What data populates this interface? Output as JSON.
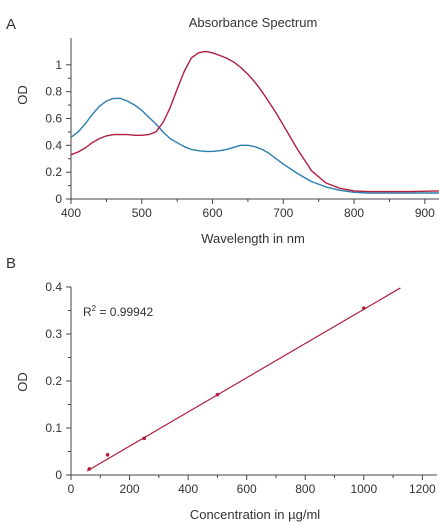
{
  "chart_data": [
    {
      "panel_label": "A",
      "type": "line",
      "title": "Absorbance Spectrum",
      "xlabel": "Wavelength in nm",
      "ylabel": "OD",
      "xlim": [
        400,
        920
      ],
      "ylim": [
        0,
        1.2
      ],
      "xticks": [
        400,
        500,
        600,
        700,
        800,
        900
      ],
      "yticks": [
        0,
        0.2,
        0.4,
        0.6,
        0.8,
        1
      ],
      "grid": false,
      "series": [
        {
          "color": "#2a7fae",
          "x": [
            400,
            410,
            420,
            430,
            440,
            450,
            460,
            470,
            480,
            490,
            500,
            510,
            520,
            530,
            540,
            550,
            560,
            570,
            580,
            590,
            600,
            610,
            620,
            630,
            640,
            650,
            660,
            670,
            680,
            690,
            700,
            720,
            740,
            760,
            780,
            800,
            820,
            850,
            880,
            920
          ],
          "y": [
            0.46,
            0.5,
            0.56,
            0.63,
            0.69,
            0.73,
            0.75,
            0.75,
            0.73,
            0.7,
            0.66,
            0.61,
            0.56,
            0.5,
            0.45,
            0.42,
            0.39,
            0.37,
            0.36,
            0.355,
            0.355,
            0.36,
            0.37,
            0.385,
            0.4,
            0.4,
            0.39,
            0.37,
            0.34,
            0.3,
            0.26,
            0.19,
            0.13,
            0.09,
            0.065,
            0.05,
            0.045,
            0.045,
            0.045,
            0.045
          ]
        },
        {
          "color": "#b01e3e",
          "x": [
            400,
            410,
            420,
            430,
            440,
            450,
            460,
            470,
            480,
            490,
            500,
            510,
            520,
            530,
            540,
            550,
            560,
            570,
            580,
            590,
            600,
            610,
            620,
            630,
            640,
            650,
            660,
            670,
            680,
            690,
            700,
            720,
            740,
            760,
            780,
            800,
            820,
            850,
            880,
            920
          ],
          "y": [
            0.33,
            0.35,
            0.38,
            0.42,
            0.45,
            0.47,
            0.48,
            0.48,
            0.48,
            0.475,
            0.475,
            0.48,
            0.5,
            0.57,
            0.68,
            0.82,
            0.95,
            1.05,
            1.09,
            1.1,
            1.09,
            1.07,
            1.05,
            1.02,
            0.98,
            0.93,
            0.87,
            0.8,
            0.72,
            0.64,
            0.55,
            0.37,
            0.21,
            0.12,
            0.08,
            0.06,
            0.055,
            0.055,
            0.055,
            0.06
          ]
        }
      ]
    },
    {
      "panel_label": "B",
      "type": "scatter",
      "xlabel": "Concentration in µg/ml",
      "ylabel": "OD",
      "xlim": [
        0,
        1250
      ],
      "ylim": [
        0,
        0.4
      ],
      "xticks": [
        0,
        200,
        400,
        600,
        800,
        1000,
        1200
      ],
      "yticks": [
        0,
        0.1,
        0.2,
        0.3,
        0.4
      ],
      "grid": false,
      "annotation": {
        "base": "R",
        "sup": "2",
        "text": " = 0.99942"
      },
      "color": "#b01e3e",
      "points": {
        "x": [
          62.5,
          125,
          250,
          500,
          1000
        ],
        "y": [
          0.013,
          0.043,
          0.078,
          0.171,
          0.355
        ]
      },
      "fit_line": {
        "x": [
          55,
          1125
        ],
        "y": [
          0.0085,
          0.398
        ]
      }
    }
  ]
}
